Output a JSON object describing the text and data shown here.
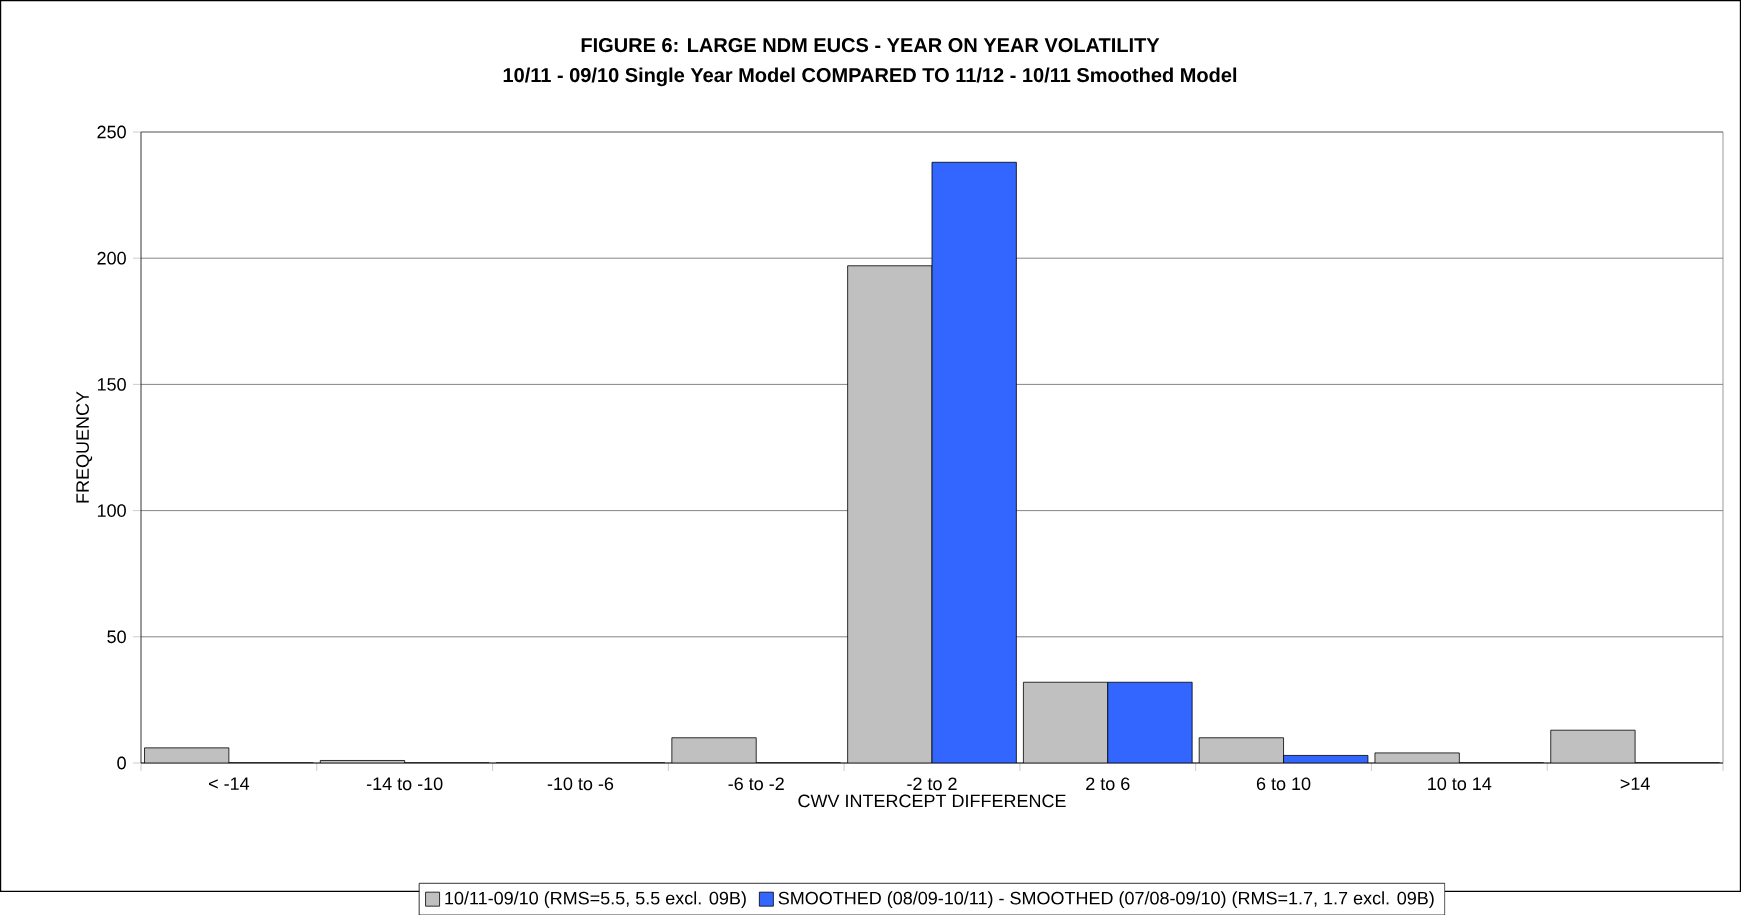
{
  "chart_data": {
    "type": "bar",
    "title": "FIGURE 6: LARGE NDM EUCS - YEAR ON YEAR VOLATILITY",
    "subtitle": "10/11 - 09/10 Single Year Model COMPARED TO 11/12 - 10/11 Smoothed Model",
    "xlabel": "CWV INTERCEPT DIFFERENCE",
    "ylabel": "FREQUENCY",
    "categories": [
      "< -14",
      "-14 to -10",
      "-10 to -6",
      "-6 to -2",
      "-2 to 2",
      "2 to 6",
      "6 to 10",
      "10 to 14",
      ">14"
    ],
    "series": [
      {
        "name": "10/11-09/10 (RMS=5.5, 5.5 excl. 09B)",
        "color": "#c0c0c0",
        "values": [
          6,
          1,
          0,
          10,
          197,
          32,
          10,
          4,
          13
        ]
      },
      {
        "name": "SMOOTHED (08/09-10/11) - SMOOTHED (07/08-09/10) (RMS=1.7, 1.7 excl. 09B)",
        "color": "#3366ff",
        "values": [
          0,
          0,
          0,
          0,
          238,
          32,
          3,
          0,
          0
        ]
      }
    ],
    "ylim": [
      0,
      250
    ],
    "yticks": [
      0,
      50,
      100,
      150,
      200,
      250
    ],
    "grid": "y",
    "legend": "bottom"
  }
}
